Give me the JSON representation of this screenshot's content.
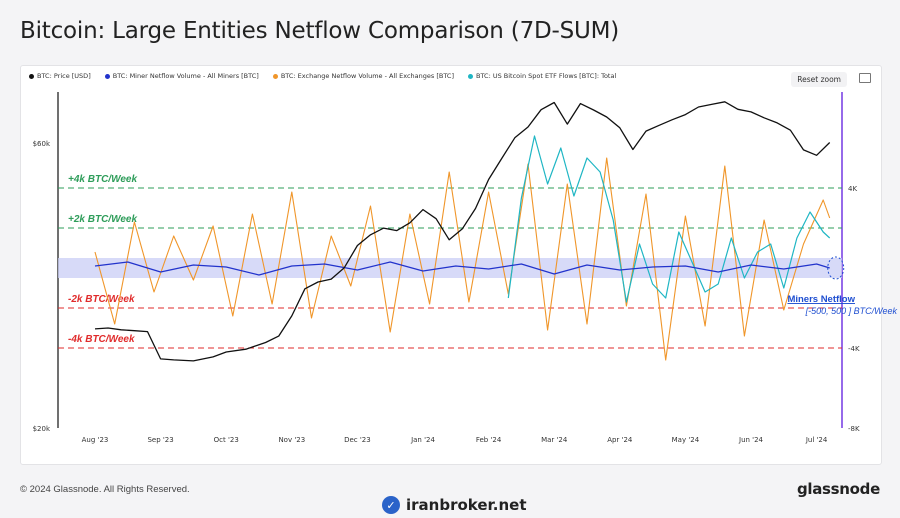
{
  "title": "Bitcoin: Large Entities Netflow Comparison (7D-SUM)",
  "toolbar": {
    "reset_label": "Reset zoom",
    "snapshot_icon": "camera-icon"
  },
  "footer": {
    "copyright": "© 2024 Glassnode. All Rights Reserved.",
    "brand": "glassnode"
  },
  "watermark_text": "iranbroker.net",
  "colors": {
    "price": "#111111",
    "miners": "#2233cc",
    "exchange": "#f0962a",
    "etf": "#1fb6c4",
    "positive": "#2e9d5a",
    "negative": "#e02b2b",
    "band": "#c9cdf5",
    "annotation": "#1f4fd1",
    "right_axis": "#6a2be0"
  },
  "chart_data": {
    "type": "line",
    "legend": [
      "BTC: Price [USD]",
      "BTC: Miner Netflow Volume - All Miners [BTC]",
      "BTC: Exchange Netflow Volume - All Exchanges [BTC]",
      "BTC: US Bitcoin Spot ETF Flows [BTC]: Total"
    ],
    "x_labels": [
      "Aug '23",
      "Sep '23",
      "Oct '23",
      "Nov '23",
      "Dec '23",
      "Jan '24",
      "Feb '24",
      "Mar '24",
      "Apr '24",
      "May '24",
      "Jun '24",
      "Jul '24"
    ],
    "left_axis": {
      "labels": [
        "$60k",
        "$20k"
      ],
      "scale": "log",
      "range": [
        20000,
        73000
      ]
    },
    "right_axis": {
      "labels": [
        "4K",
        "-4K",
        "-8K"
      ],
      "range": [
        -8000,
        8800
      ]
    },
    "reference_lines": [
      {
        "label": "+4k BTC/Week",
        "value": 4000,
        "sign": "positive"
      },
      {
        "label": "+2k BTC/Week",
        "value": 2000,
        "sign": "positive"
      },
      {
        "label": "-2k BTC/Week",
        "value": -2000,
        "sign": "negative"
      },
      {
        "label": "-4k BTC/Week",
        "value": -4000,
        "sign": "negative"
      }
    ],
    "band": {
      "low": -500,
      "high": 500
    },
    "annotation": {
      "title": "Miners Netflow",
      "subtitle": "[-500, 500 ] BTC/Week"
    },
    "series": [
      {
        "name": "BTC: Price [USD]",
        "axis": "left",
        "x": [
          0,
          0.2,
          0.4,
          0.6,
          0.8,
          1.0,
          1.2,
          1.5,
          1.8,
          2.0,
          2.3,
          2.6,
          2.8,
          3.0,
          3.2,
          3.4,
          3.6,
          3.8,
          4.0,
          4.2,
          4.4,
          4.6,
          4.8,
          5.0,
          5.2,
          5.4,
          5.6,
          5.8,
          6.0,
          6.2,
          6.4,
          6.6,
          6.8,
          7.0,
          7.2,
          7.4,
          7.6,
          7.8,
          8.0,
          8.2,
          8.4,
          8.6,
          8.8,
          9.0,
          9.2,
          9.4,
          9.6,
          9.8,
          10.0,
          10.2,
          10.4,
          10.6,
          10.8,
          11.0,
          11.2
        ],
        "values": [
          29300,
          29400,
          29200,
          29100,
          29000,
          26100,
          26000,
          25900,
          26300,
          26800,
          27100,
          27800,
          28500,
          30800,
          34200,
          35100,
          35500,
          37100,
          40400,
          42100,
          43200,
          42800,
          44100,
          46400,
          44800,
          41300,
          43100,
          46600,
          52100,
          56500,
          61200,
          63800,
          68200,
          70100,
          64500,
          69800,
          68100,
          66300,
          63600,
          58500,
          62800,
          64200,
          65600,
          66900,
          68900,
          69600,
          70300,
          68300,
          67600,
          66100,
          64800,
          63000,
          58400,
          57200,
          60100
        ]
      },
      {
        "name": "BTC: Miner Netflow Volume - All Miners [BTC]",
        "axis": "right",
        "x": [
          0,
          0.5,
          1.0,
          1.5,
          2.0,
          2.5,
          3.0,
          3.5,
          4.0,
          4.5,
          5.0,
          5.5,
          6.0,
          6.5,
          7.0,
          7.5,
          8.0,
          8.5,
          9.0,
          9.5,
          10.0,
          10.5,
          11.0,
          11.2
        ],
        "values": [
          100,
          300,
          -200,
          150,
          50,
          -350,
          100,
          200,
          -100,
          300,
          -150,
          100,
          -50,
          200,
          -300,
          150,
          -100,
          50,
          100,
          -200,
          150,
          -50,
          200,
          0
        ]
      },
      {
        "name": "BTC: Exchange Netflow Volume - All Exchanges [BTC]",
        "axis": "right",
        "x": [
          0,
          0.3,
          0.6,
          0.9,
          1.2,
          1.5,
          1.8,
          2.1,
          2.4,
          2.7,
          3.0,
          3.3,
          3.6,
          3.9,
          4.2,
          4.5,
          4.8,
          5.1,
          5.4,
          5.7,
          6.0,
          6.3,
          6.6,
          6.9,
          7.2,
          7.5,
          7.8,
          8.1,
          8.4,
          8.7,
          9.0,
          9.3,
          9.6,
          9.9,
          10.2,
          10.5,
          10.8,
          11.1,
          11.2
        ],
        "values": [
          800,
          -2800,
          2300,
          -1200,
          1600,
          -600,
          2100,
          -2400,
          2700,
          -1800,
          3800,
          -2500,
          1600,
          -900,
          3100,
          -3200,
          2700,
          -1800,
          4800,
          -1700,
          3800,
          -1300,
          5200,
          -3100,
          4200,
          -2800,
          5500,
          -1900,
          3700,
          -4600,
          2600,
          -2900,
          5100,
          -3400,
          2400,
          -2100,
          1200,
          3400,
          2500
        ]
      },
      {
        "name": "BTC: US Bitcoin Spot ETF Flows [BTC]: Total",
        "axis": "right",
        "x": [
          6.3,
          6.5,
          6.7,
          6.9,
          7.1,
          7.3,
          7.5,
          7.7,
          7.9,
          8.1,
          8.3,
          8.5,
          8.7,
          8.9,
          9.1,
          9.3,
          9.5,
          9.7,
          9.9,
          10.1,
          10.3,
          10.5,
          10.7,
          10.9,
          11.1,
          11.2
        ],
        "values": [
          -1500,
          3500,
          6600,
          4200,
          6000,
          3600,
          5500,
          4800,
          2400,
          -1700,
          1200,
          -800,
          -1500,
          1800,
          300,
          -1200,
          -800,
          1500,
          -500,
          800,
          1200,
          -1000,
          1500,
          2800,
          1800,
          1500
        ]
      }
    ]
  }
}
